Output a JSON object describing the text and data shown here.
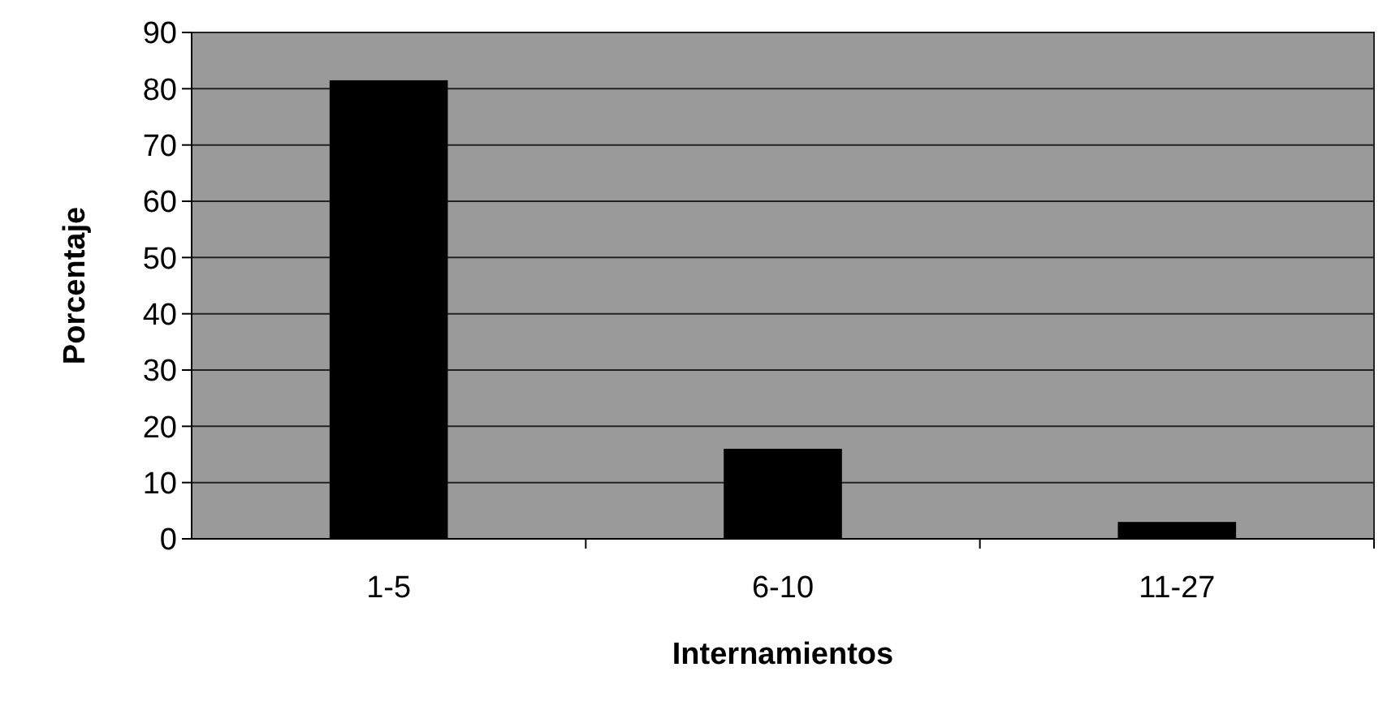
{
  "chart_data": {
    "type": "bar",
    "xlabel": "Internamientos",
    "ylabel": "Porcentaje",
    "categories": [
      "1-5",
      "6-10",
      "11-27"
    ],
    "values": [
      81.5,
      16,
      3
    ],
    "color": "#000000",
    "ylim": [
      0,
      90
    ],
    "yticks": [
      0,
      10,
      20,
      30,
      40,
      50,
      60,
      70,
      80,
      90
    ],
    "grid": "y"
  }
}
